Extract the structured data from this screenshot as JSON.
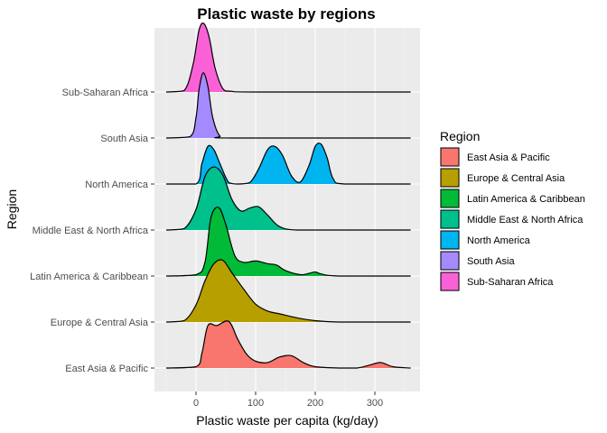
{
  "chart_data": {
    "type": "ridgeline",
    "title": "Plastic waste by regions",
    "xlabel": "Plastic waste per capita (kg/day)",
    "ylabel": "Region",
    "xlim": [
      -50,
      360
    ],
    "xticks": [
      0,
      100,
      200,
      300
    ],
    "grid": true,
    "legend": {
      "title": "Region",
      "placement": "right"
    },
    "categories": [
      "East Asia & Pacific",
      "Europe & Central Asia",
      "Latin America & Caribbean",
      "Middle East & North Africa",
      "North America",
      "South Asia",
      "Sub-Saharan Africa"
    ],
    "series": [
      {
        "name": "East Asia & Pacific",
        "color": "#F8766D",
        "density": {
          "x": [
            -50,
            0,
            10,
            20,
            35,
            55,
            70,
            85,
            100,
            120,
            140,
            160,
            180,
            200,
            240,
            270,
            290,
            310,
            330,
            360
          ],
          "y": [
            0,
            0.02,
            0.22,
            0.62,
            0.62,
            0.68,
            0.42,
            0.2,
            0.1,
            0.08,
            0.16,
            0.18,
            0.08,
            0.02,
            0,
            0,
            0.04,
            0.08,
            0.02,
            0
          ]
        }
      },
      {
        "name": "Europe & Central Asia",
        "color": "#B79F00",
        "density": {
          "x": [
            -50,
            -20,
            0,
            15,
            30,
            45,
            60,
            80,
            100,
            120,
            140,
            170,
            200,
            240,
            300,
            360
          ],
          "y": [
            0,
            0.02,
            0.25,
            0.6,
            0.85,
            0.9,
            0.72,
            0.48,
            0.26,
            0.16,
            0.12,
            0.06,
            0.02,
            0,
            0,
            0
          ]
        }
      },
      {
        "name": "Latin America & Caribbean",
        "color": "#00BA38",
        "density": {
          "x": [
            -50,
            0,
            15,
            25,
            38,
            50,
            65,
            80,
            100,
            120,
            135,
            150,
            175,
            190,
            200,
            210,
            240,
            360
          ],
          "y": [
            0,
            0.02,
            0.2,
            0.85,
            1.0,
            0.75,
            0.3,
            0.2,
            0.22,
            0.18,
            0.16,
            0.08,
            0.02,
            0.04,
            0.06,
            0.03,
            0,
            0
          ]
        }
      },
      {
        "name": "Middle East & North Africa",
        "color": "#00C08B",
        "density": {
          "x": [
            -50,
            -20,
            0,
            15,
            30,
            45,
            60,
            75,
            90,
            105,
            120,
            140,
            170,
            250,
            360
          ],
          "y": [
            0,
            0.02,
            0.3,
            0.78,
            0.92,
            0.8,
            0.45,
            0.28,
            0.32,
            0.34,
            0.22,
            0.05,
            0,
            0,
            0
          ]
        }
      },
      {
        "name": "North America",
        "color": "#00B4F0",
        "density": {
          "x": [
            -50,
            0,
            10,
            20,
            30,
            40,
            55,
            70,
            90,
            105,
            120,
            132,
            145,
            160,
            175,
            190,
            200,
            210,
            220,
            230,
            250,
            360
          ],
          "y": [
            0,
            0,
            0.3,
            0.55,
            0.5,
            0.3,
            0.02,
            0,
            0.02,
            0.22,
            0.5,
            0.55,
            0.42,
            0.12,
            0.03,
            0.28,
            0.55,
            0.58,
            0.38,
            0.08,
            0,
            0
          ]
        }
      },
      {
        "name": "South Asia",
        "color": "#A58AFF",
        "density": {
          "x": [
            -50,
            -10,
            0,
            5,
            12,
            20,
            28,
            40,
            60,
            360
          ],
          "y": [
            0,
            0.02,
            0.3,
            0.7,
            0.95,
            0.75,
            0.3,
            0.03,
            0,
            0
          ]
        }
      },
      {
        "name": "Sub-Saharan Africa",
        "color": "#FB61D7",
        "density": {
          "x": [
            -50,
            -20,
            -5,
            5,
            13,
            22,
            32,
            45,
            60,
            100,
            360
          ],
          "y": [
            0,
            0.02,
            0.4,
            0.9,
            1.0,
            0.8,
            0.35,
            0.05,
            0.01,
            0,
            0
          ]
        }
      }
    ]
  }
}
